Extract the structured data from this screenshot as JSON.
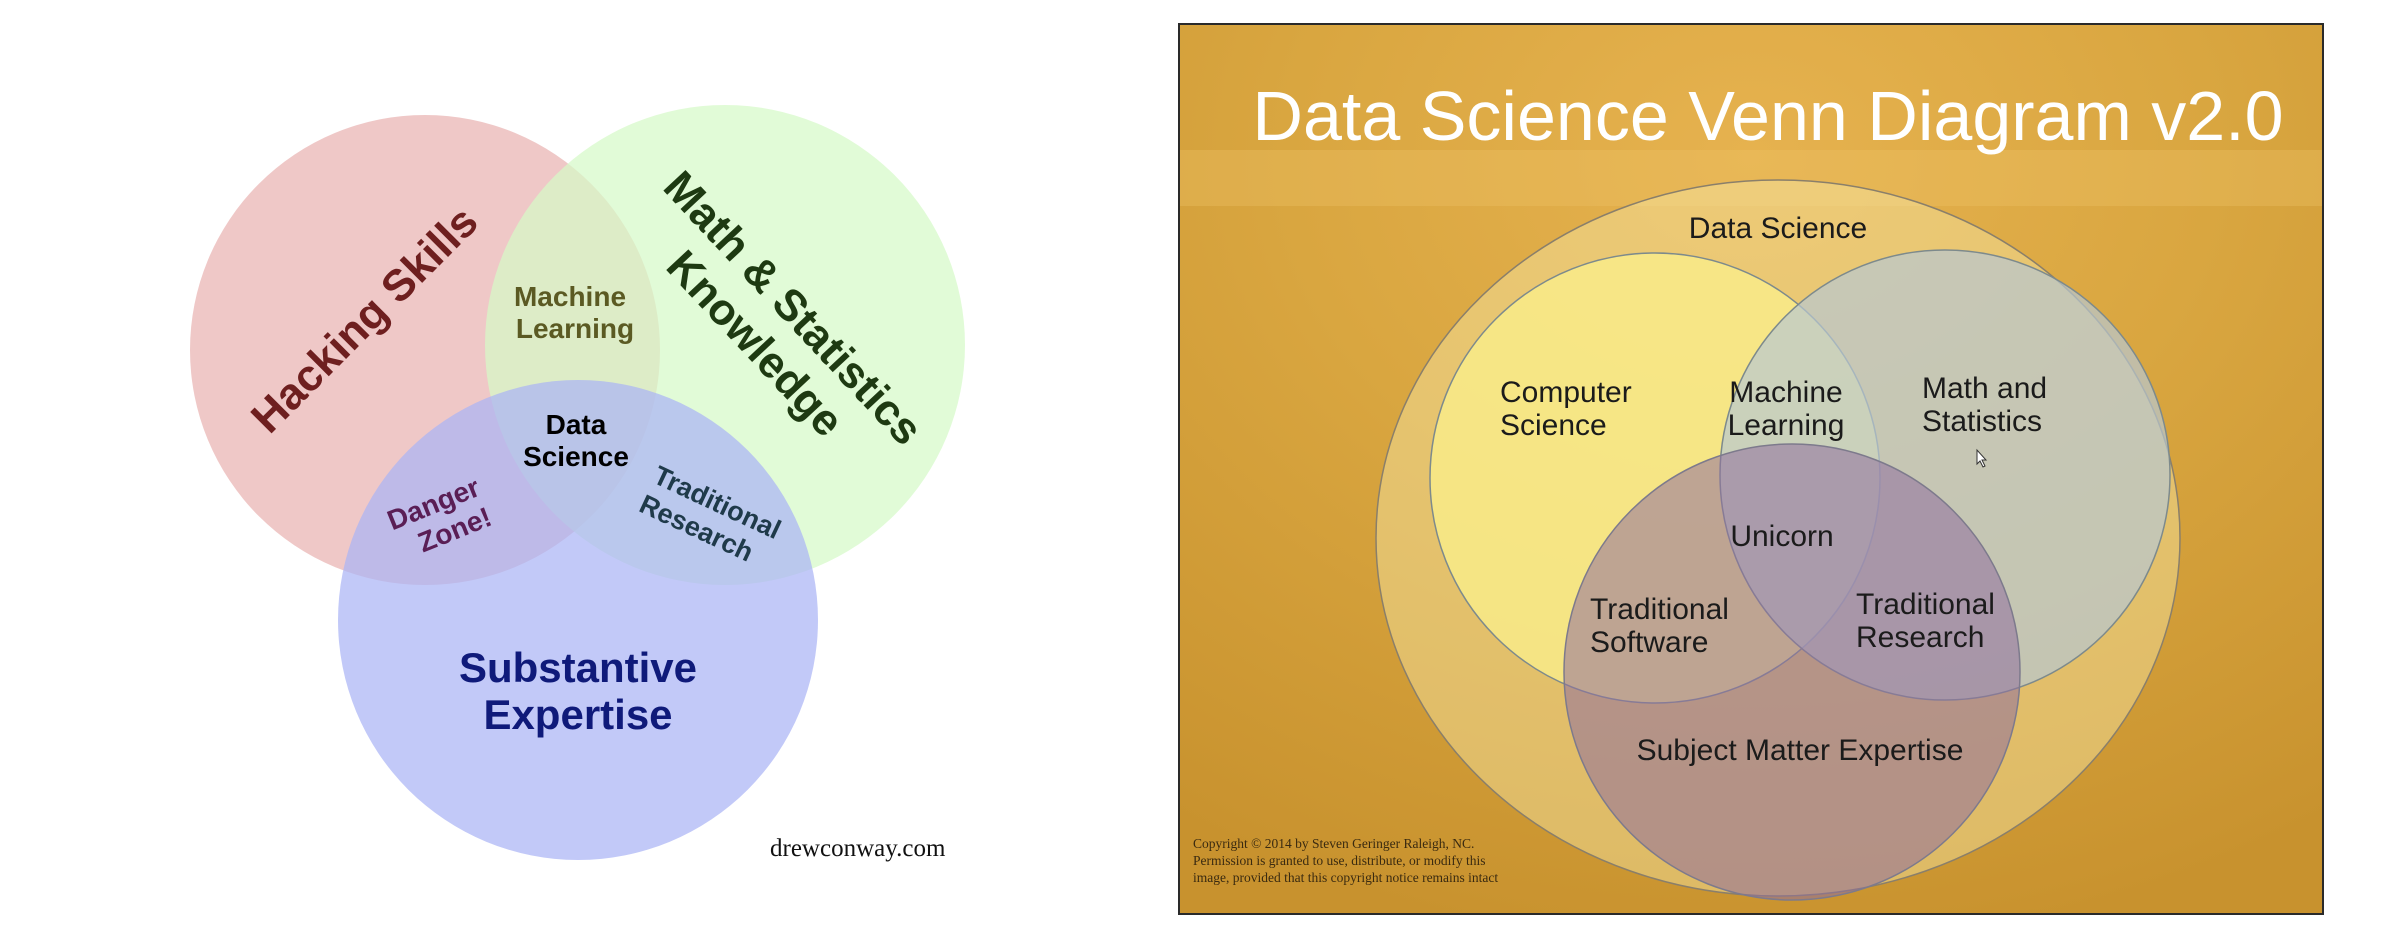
{
  "left_diagram": {
    "circles": {
      "hacking": "Hacking Skills",
      "math": [
        "Math & Statistics",
        "Knowledge"
      ],
      "substantive": [
        "Substantive",
        "Expertise"
      ]
    },
    "overlaps": {
      "machine_learning": [
        "Machine",
        "Learning"
      ],
      "danger_zone": [
        "Danger",
        "Zone!"
      ],
      "traditional_research": [
        "Traditional",
        "Research"
      ],
      "data_science": [
        "Data",
        "Science"
      ]
    },
    "credit": "drewconway.com",
    "colors": {
      "hacking": "#e9b3b2",
      "math": "#d6f9c8",
      "substantive": "#aab4f5"
    }
  },
  "right_diagram": {
    "title": "Data Science Venn Diagram v2.0",
    "outer_label": "Data Science",
    "circles": {
      "computer_science": [
        "Computer",
        "Science"
      ],
      "math_statistics": [
        "Math and",
        "Statistics"
      ],
      "subject_matter": "Subject Matter Expertise"
    },
    "overlaps": {
      "machine_learning": [
        "Machine",
        "Learning"
      ],
      "unicorn": "Unicorn",
      "traditional_software": [
        "Traditional",
        "Software"
      ],
      "traditional_research": [
        "Traditional",
        "Research"
      ]
    },
    "copyright": [
      "Copyright © 2014 by Steven Geringer Raleigh, NC.",
      "Permission is granted to use, distribute, or modify this",
      "image, provided that this copyright notice remains intact"
    ],
    "colors": {
      "background": "#d9a640",
      "computer_science": "#fbf08c",
      "math_statistics": "#bcc9d1",
      "subject_matter": "#9a7fa8"
    }
  }
}
